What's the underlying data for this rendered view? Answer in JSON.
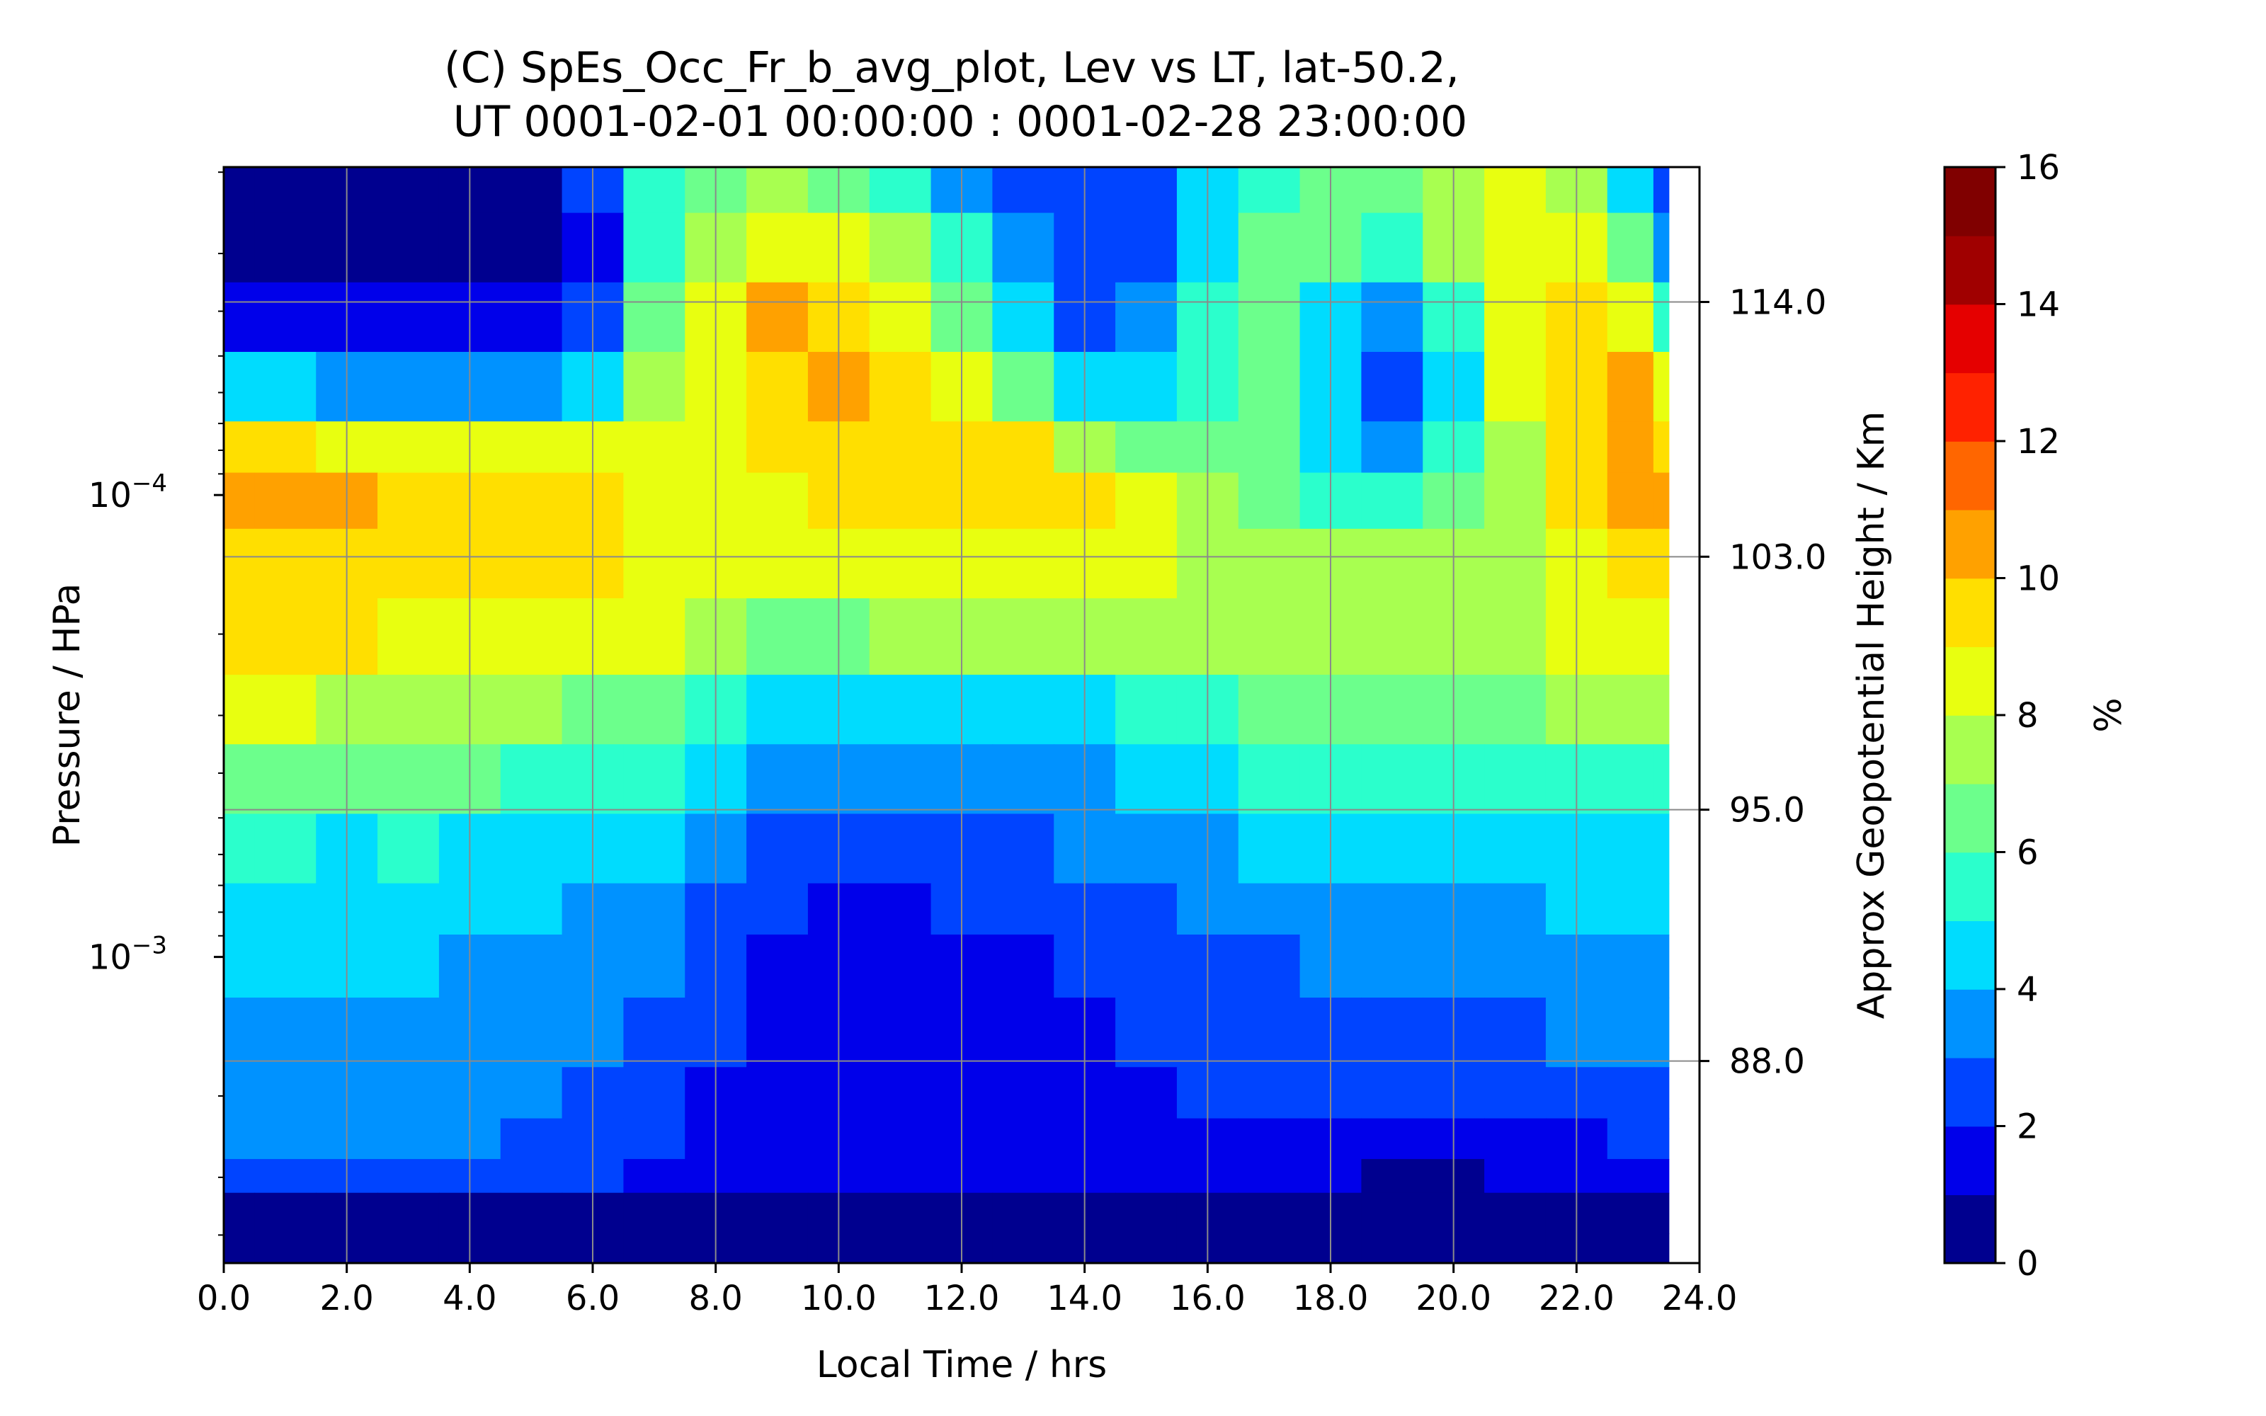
{
  "chart_data": {
    "type": "heatmap",
    "title_line1": "(C) SpEs_Occ_Fr_b_avg_plot, Lev vs LT, lat-50.2,",
    "title_line2": "UT 0001-02-01 00:00:00 : 0001-02-28 23:00:00",
    "xlabel": "Local Time / hrs",
    "ylabel": "Pressure / HPa",
    "ylabel_right": "Approx Geopotential Height / Km",
    "colorbar_label": "%",
    "xlim": [
      0,
      24
    ],
    "xticks": [
      "0.0",
      "2.0",
      "4.0",
      "6.0",
      "8.0",
      "10.0",
      "12.0",
      "14.0",
      "16.0",
      "18.0",
      "20.0",
      "22.0",
      "24.0"
    ],
    "y_scale": "log",
    "ylim_top_hpa": 1.95e-05,
    "ylim_bottom_hpa": 0.0046,
    "yticks_major": [
      {
        "value": 0.0001,
        "label": "10^-4"
      },
      {
        "value": 0.001,
        "label": "10^-3"
      }
    ],
    "right_ticks": [
      {
        "label": "114.0",
        "pressure_hpa": 3.82e-05
      },
      {
        "label": "103.0",
        "pressure_hpa": 0.000136
      },
      {
        "label": "95.0",
        "pressure_hpa": 0.00048
      },
      {
        "label": "88.0",
        "pressure_hpa": 0.00168
      }
    ],
    "grid": true,
    "colorbar_levels": [
      0,
      1,
      2,
      3,
      4,
      5,
      6,
      7,
      8,
      9,
      10,
      11,
      12,
      13,
      14,
      15,
      16
    ],
    "colorbar_ticks": [
      "0",
      "2",
      "4",
      "6",
      "8",
      "10",
      "12",
      "14",
      "16"
    ],
    "colorbar_colors": [
      "#00008f",
      "#0000ea",
      "#0044ff",
      "#0092ff",
      "#00dcfe",
      "#2bffcc",
      "#6cff8c",
      "#a8ff50",
      "#e8ff10",
      "#ffdf00",
      "#ffa100",
      "#ff6600",
      "#ff2200",
      "#e50000",
      "#a00000",
      "#800000"
    ],
    "x": [
      0,
      1,
      2,
      3,
      4,
      5,
      6,
      7,
      8,
      9,
      10,
      11,
      12,
      13,
      14,
      15,
      16,
      17,
      18,
      19,
      20,
      21,
      22,
      23,
      23.5
    ],
    "y_pressure_hpa": [
      2e-05,
      3e-05,
      4e-05,
      6e-05,
      8e-05,
      0.0001,
      0.00014,
      0.0002,
      0.0003,
      0.0004,
      0.0006,
      0.0008,
      0.001,
      0.0015,
      0.002,
      0.0025,
      0.003,
      0.0035,
      0.0045
    ],
    "values": [
      [
        0.5,
        0.5,
        0.5,
        0.5,
        0.5,
        0.5,
        2.0,
        5.0,
        6.5,
        7.0,
        6.5,
        5.5,
        3.5,
        2.5,
        2.0,
        2.5,
        4.0,
        5.5,
        6.0,
        6.5,
        7.5,
        8.0,
        7.5,
        4.5,
        2.5
      ],
      [
        0.5,
        0.5,
        0.5,
        0.5,
        0.5,
        0.5,
        1.5,
        5.5,
        7.5,
        8.5,
        8.0,
        7.0,
        5.0,
        3.0,
        2.0,
        2.5,
        4.5,
        6.0,
        6.0,
        5.5,
        7.0,
        8.0,
        8.5,
        6.0,
        3.0
      ],
      [
        1.5,
        1.5,
        1.5,
        1.5,
        1.5,
        1.5,
        2.0,
        6.0,
        8.5,
        10.0,
        9.5,
        8.5,
        6.5,
        4.5,
        2.5,
        3.0,
        5.0,
        6.0,
        4.5,
        3.5,
        5.5,
        8.0,
        9.5,
        8.5,
        5.0
      ],
      [
        4.5,
        4.0,
        3.5,
        3.5,
        3.5,
        3.5,
        4.0,
        7.0,
        8.5,
        9.5,
        10.0,
        9.5,
        8.0,
        6.5,
        4.5,
        4.0,
        5.5,
        6.0,
        4.0,
        2.5,
        4.5,
        8.0,
        9.5,
        10.0,
        8.0
      ],
      [
        9.0,
        9.0,
        8.5,
        8.5,
        8.0,
        8.0,
        8.5,
        8.5,
        8.5,
        9.0,
        9.5,
        9.5,
        9.5,
        9.0,
        7.5,
        6.5,
        6.5,
        6.0,
        4.5,
        3.5,
        5.0,
        7.5,
        9.0,
        10.0,
        9.5
      ],
      [
        10.0,
        10.0,
        10.0,
        9.5,
        9.5,
        9.0,
        9.0,
        8.5,
        8.5,
        8.5,
        9.0,
        9.0,
        9.0,
        9.0,
        9.0,
        8.5,
        7.5,
        6.5,
        5.5,
        5.5,
        6.0,
        7.5,
        9.0,
        10.0,
        10.0
      ],
      [
        9.5,
        9.5,
        9.5,
        9.5,
        9.5,
        9.5,
        9.0,
        8.5,
        8.0,
        8.0,
        8.0,
        8.0,
        8.0,
        8.0,
        8.0,
        8.0,
        7.5,
        7.0,
        7.0,
        7.0,
        7.0,
        7.5,
        8.5,
        9.5,
        9.5
      ],
      [
        9.0,
        9.0,
        9.0,
        8.5,
        8.5,
        8.5,
        8.5,
        8.0,
        7.0,
        6.5,
        6.5,
        7.0,
        7.0,
        7.0,
        7.0,
        7.0,
        7.0,
        7.0,
        7.0,
        7.0,
        7.0,
        7.5,
        8.0,
        8.5,
        8.5
      ],
      [
        8.0,
        8.0,
        7.5,
        7.5,
        7.0,
        7.0,
        6.5,
        6.0,
        5.0,
        4.5,
        4.0,
        4.5,
        4.5,
        4.5,
        4.5,
        5.0,
        5.5,
        6.0,
        6.0,
        6.0,
        6.0,
        6.5,
        7.0,
        7.0,
        7.0
      ],
      [
        6.5,
        6.5,
        6.0,
        6.0,
        6.0,
        5.5,
        5.5,
        5.0,
        4.0,
        3.5,
        3.0,
        3.5,
        3.5,
        3.5,
        3.5,
        4.0,
        4.5,
        5.0,
        5.0,
        5.0,
        5.0,
        5.5,
        5.5,
        5.5,
        5.5
      ],
      [
        5.0,
        5.0,
        4.5,
        5.0,
        4.5,
        4.5,
        4.5,
        4.0,
        3.0,
        2.5,
        2.5,
        2.5,
        2.5,
        2.5,
        3.0,
        3.0,
        3.5,
        4.0,
        4.0,
        4.5,
        4.5,
        4.5,
        4.5,
        4.5,
        4.5
      ],
      [
        4.5,
        4.0,
        4.0,
        4.0,
        4.0,
        4.0,
        3.5,
        3.0,
        2.5,
        2.0,
        1.5,
        1.5,
        2.0,
        2.0,
        2.5,
        2.5,
        3.0,
        3.0,
        3.5,
        3.5,
        3.5,
        3.5,
        4.0,
        4.0,
        4.0
      ],
      [
        4.0,
        4.0,
        4.0,
        4.0,
        3.5,
        3.5,
        3.5,
        3.0,
        2.0,
        1.5,
        1.5,
        1.0,
        1.5,
        1.5,
        2.0,
        2.5,
        2.5,
        2.5,
        3.0,
        3.0,
        3.0,
        3.0,
        3.5,
        3.5,
        3.5
      ],
      [
        3.5,
        3.5,
        3.5,
        3.5,
        3.5,
        3.0,
        3.0,
        2.5,
        2.0,
        1.5,
        1.0,
        1.0,
        1.0,
        1.5,
        1.5,
        2.0,
        2.0,
        2.5,
        2.5,
        2.5,
        2.5,
        2.5,
        3.0,
        3.0,
        3.0
      ],
      [
        3.5,
        3.5,
        3.5,
        3.5,
        3.0,
        3.0,
        2.5,
        2.0,
        1.5,
        1.5,
        1.5,
        1.0,
        1.0,
        1.5,
        1.5,
        1.5,
        2.0,
        2.0,
        2.0,
        2.0,
        2.0,
        2.0,
        2.5,
        2.5,
        2.5
      ],
      [
        3.0,
        3.0,
        3.0,
        3.0,
        3.0,
        2.5,
        2.5,
        2.0,
        1.5,
        1.5,
        1.5,
        1.5,
        1.5,
        1.5,
        1.5,
        1.5,
        1.5,
        1.5,
        1.0,
        1.0,
        1.0,
        1.5,
        1.5,
        2.0,
        2.0
      ],
      [
        2.0,
        2.0,
        2.0,
        2.0,
        2.0,
        2.0,
        2.0,
        1.5,
        1.5,
        1.5,
        1.5,
        1.5,
        1.5,
        1.5,
        1.5,
        1.5,
        1.5,
        1.0,
        1.0,
        0.5,
        0.5,
        1.0,
        1.0,
        1.5,
        1.5
      ],
      [
        0.5,
        0.5,
        0.5,
        0.5,
        0.5,
        0.5,
        0.5,
        0.5,
        0.5,
        0.5,
        0.5,
        0.5,
        0.5,
        0.5,
        0.5,
        0.5,
        0.5,
        0.5,
        0.5,
        0.5,
        0.5,
        0.5,
        0.5,
        0.5,
        0.5
      ],
      [
        0.5,
        0.5,
        0.5,
        0.5,
        0.5,
        0.5,
        0.5,
        0.5,
        0.5,
        0.5,
        0.5,
        0.5,
        0.5,
        0.5,
        0.5,
        0.5,
        0.5,
        0.5,
        0.5,
        0.5,
        0.5,
        0.5,
        0.5,
        0.5,
        0.5
      ]
    ]
  }
}
